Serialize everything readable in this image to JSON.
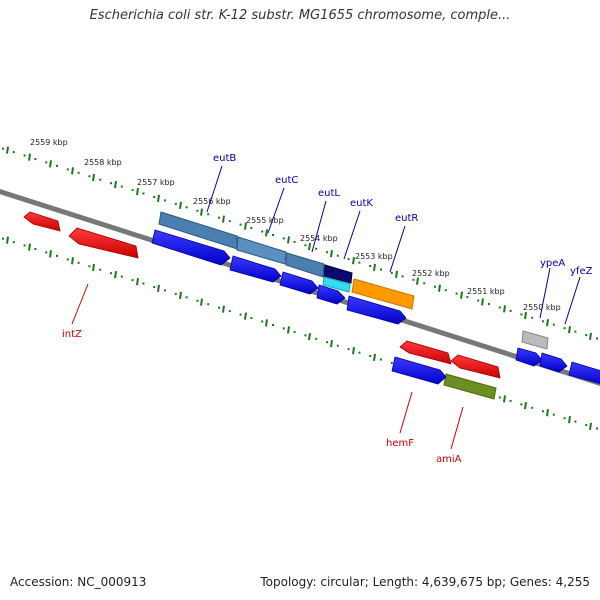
{
  "title": "Escherichia coli str. K-12 substr. MG1655 chromosome, comple...",
  "footer": {
    "accession": "Accession: NC_000913",
    "summary": "Topology: circular; Length: 4,639,675 bp; Genes: 4,255"
  },
  "ticks": [
    {
      "label": "2559 kbp"
    },
    {
      "label": "2558 kbp"
    },
    {
      "label": "2557 kbp"
    },
    {
      "label": "2556 kbp"
    },
    {
      "label": "2555 kbp"
    },
    {
      "label": "2554 kbp"
    },
    {
      "label": "2553 kbp"
    },
    {
      "label": "2552 kbp"
    },
    {
      "label": "2551 kbp"
    },
    {
      "label": "2550 kbp"
    }
  ],
  "genes": [
    {
      "label": "eutB",
      "color": "#0000aa"
    },
    {
      "label": "eutC",
      "color": "#0000aa"
    },
    {
      "label": "eutL",
      "color": "#0000aa"
    },
    {
      "label": "eutK",
      "color": "#0000aa"
    },
    {
      "label": "eutR",
      "color": "#0000aa"
    },
    {
      "label": "ypeA",
      "color": "#0000aa"
    },
    {
      "label": "yfeZ",
      "color": "#0000aa"
    },
    {
      "label": "intZ",
      "color": "#cc0000"
    },
    {
      "label": "hemF",
      "color": "#cc0000"
    },
    {
      "label": "amiA",
      "color": "#cc0000"
    }
  ],
  "colors": {
    "forward_cds": "#0000ee",
    "reverse_cds": "#ee0000",
    "backbone": "#7a7a7a",
    "tick_marks": "#1a7a1a",
    "feature_steelblue": "#4a7fb0",
    "feature_navy": "#0a0a6e",
    "feature_cyan": "#33ddee",
    "feature_orange": "#ff9900",
    "feature_olive": "#6b8e23",
    "feature_grey": "#bbbbbb"
  }
}
